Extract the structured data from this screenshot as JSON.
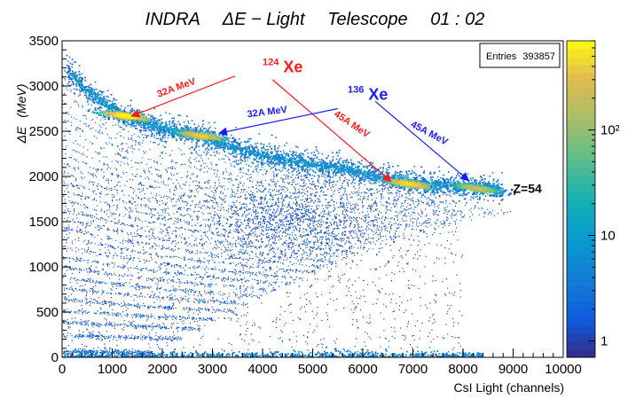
{
  "chart_data": {
    "type": "heatmap",
    "title_parts": [
      "INDRA",
      "ΔE − Light",
      "Telescope",
      "01 : 02"
    ],
    "xlabel": "CsI Light (channels)",
    "ylabel_symbol": "ΔE",
    "ylabel_unit": "(MeV)",
    "xlim": [
      0,
      10000
    ],
    "ylim": [
      0,
      3500
    ],
    "x_ticks": [
      0,
      1000,
      2000,
      3000,
      4000,
      5000,
      6000,
      7000,
      8000,
      9000,
      10000
    ],
    "y_ticks": [
      0,
      500,
      1000,
      1500,
      2000,
      2500,
      3000,
      3500
    ],
    "colorbar": {
      "scale": "log",
      "ticks": [
        "1",
        "10",
        "10²"
      ],
      "min": 0.7,
      "max": 700
    },
    "stats_box": {
      "label": "Entries",
      "value": "393857"
    },
    "annotations": {
      "xe124": {
        "mass": "124",
        "element": "Xe",
        "color": "#ff1a1a",
        "x": 4000,
        "y": 3150
      },
      "xe136": {
        "mass": "136",
        "element": "Xe",
        "color": "#1a1aff",
        "x": 5700,
        "y": 2850
      },
      "z_label": {
        "text": "Z=54",
        "x": 9000,
        "y": 1820
      },
      "arrows": [
        {
          "label": "32A MeV",
          "color": "#ff1a1a",
          "from": [
            3450,
            3110
          ],
          "to": [
            1400,
            2670
          ],
          "label_pos": [
            2300,
            2950
          ],
          "angle": -20
        },
        {
          "label": "45A MeV",
          "color": "#ff1a1a",
          "from": [
            4200,
            3070
          ],
          "to": [
            6550,
            1950
          ],
          "label_pos": [
            5750,
            2550
          ],
          "angle": 34
        },
        {
          "label": "32A MeV",
          "color": "#1a1aff",
          "from": [
            5500,
            2750
          ],
          "to": [
            3150,
            2480
          ],
          "label_pos": [
            4100,
            2680
          ],
          "angle": -7
        },
        {
          "label": "45A MeV",
          "color": "#1a1aff",
          "from": [
            6250,
            2830
          ],
          "to": [
            8100,
            1960
          ],
          "label_pos": [
            7300,
            2450
          ],
          "angle": 28
        }
      ]
    },
    "main_ridge": [
      [
        80,
        3200
      ],
      [
        500,
        2950
      ],
      [
        1000,
        2750
      ],
      [
        1400,
        2640
      ],
      [
        2000,
        2540
      ],
      [
        2800,
        2450
      ],
      [
        3500,
        2300
      ],
      [
        4500,
        2180
      ],
      [
        5500,
        2100
      ],
      [
        6500,
        1980
      ],
      [
        7200,
        1930
      ],
      [
        8000,
        1890
      ],
      [
        8700,
        1870
      ]
    ],
    "hotspots": [
      {
        "x": 1250,
        "y": 2680,
        "peak": 700
      },
      {
        "x": 2750,
        "y": 2460,
        "peak": 400
      },
      {
        "x": 6900,
        "y": 1930,
        "peak": 500
      },
      {
        "x": 8250,
        "y": 1880,
        "peak": 200
      }
    ],
    "line_count": 30,
    "line_intercepts_y": [
      70,
      3200
    ]
  }
}
